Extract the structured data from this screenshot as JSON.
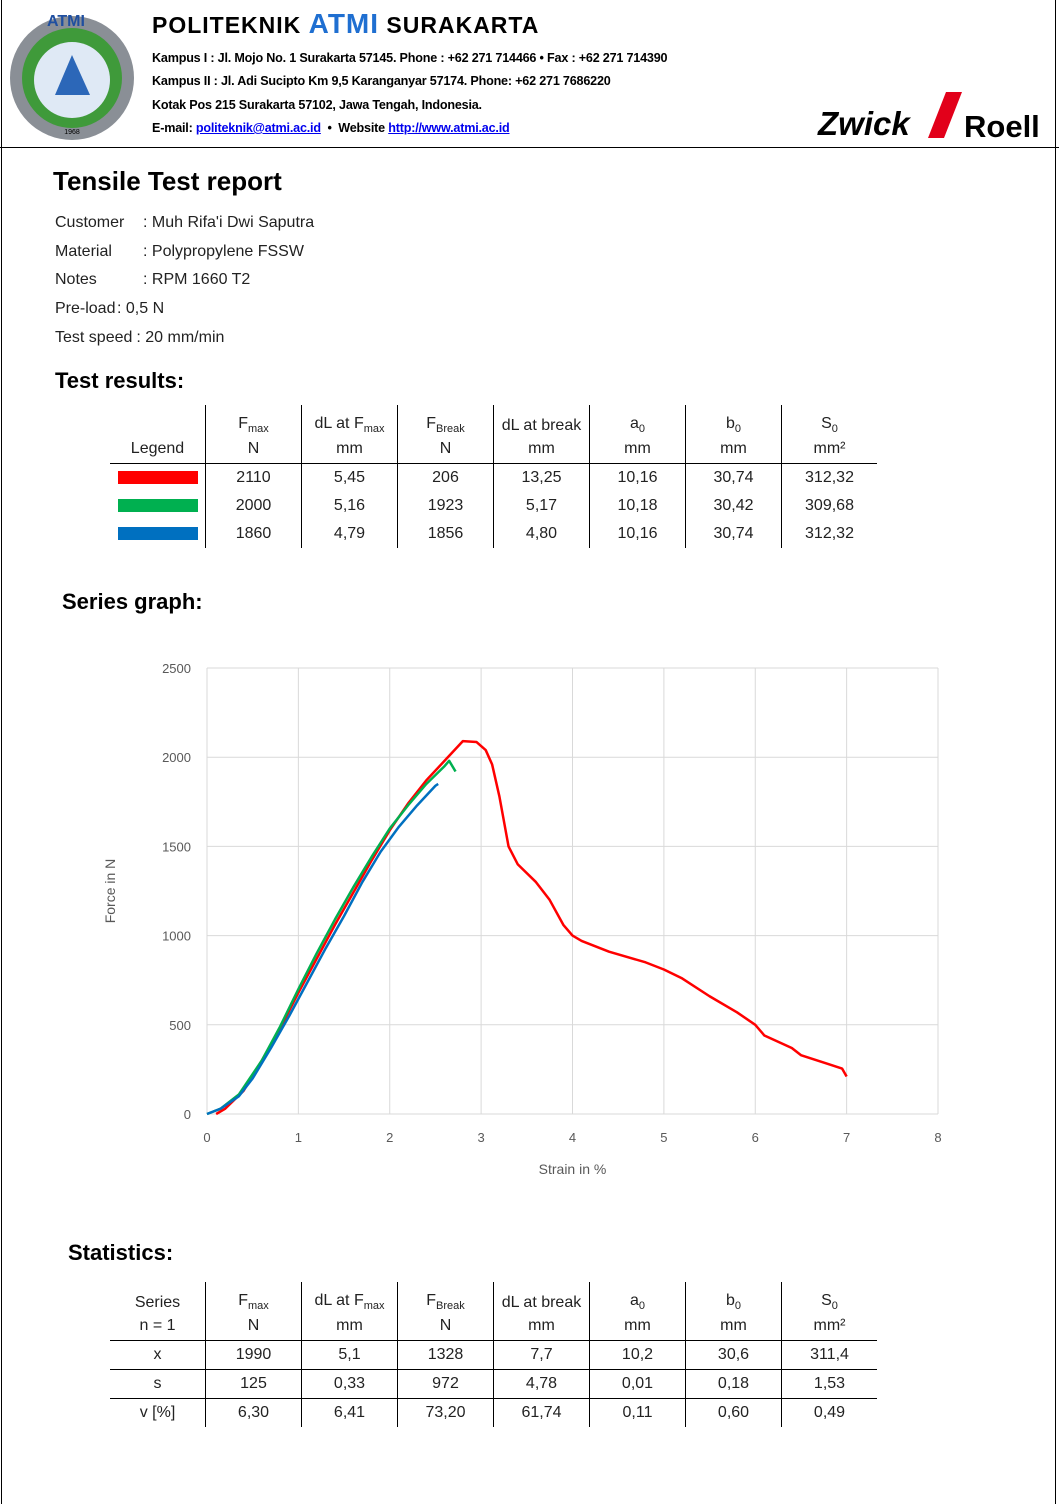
{
  "header": {
    "institute": [
      "POLITEKNIK ",
      "ATMI",
      " SURAKARTA"
    ],
    "address_lines": [
      "Kampus  I : Jl. Mojo No. 1 Surakarta 57145.  Phone : +62 271 714466  •  Fax : +62 271 714390",
      "Kampus II : Jl. Adi Sucipto Km 9,5 Karanganyar 57174.  Phone: +62 271 7686220",
      "Kotak Pos 215  Surakarta 57102, Jawa Tengah, Indonesia."
    ],
    "contact": [
      "E-mail: ",
      "politeknik@atmi.ac.id",
      "  •  Website ",
      "http://www.atmi.ac.id"
    ],
    "logo_text": "ATMI",
    "logo_year": "1968",
    "brand": [
      "Zwick",
      "Roell"
    ]
  },
  "title": "Tensile Test report",
  "info": [
    {
      "label": "Customer",
      "value": ": Muh Rifa'i Dwi Saputra"
    },
    {
      "label": "Material",
      "value": ": Polypropylene FSSW"
    },
    {
      "label": "Notes",
      "value": ": RPM 1660 T2"
    },
    {
      "label": "Pre-load",
      "value": ": 0,5 N"
    },
    {
      "label": "Test speed",
      "value": ": 20 mm/min"
    }
  ],
  "results": {
    "title": "Test results:",
    "legend_header": "Legend",
    "columns": [
      {
        "name": {
          "main": "F",
          "sub": "max"
        },
        "unit": "N"
      },
      {
        "name": {
          "main": "dL at F",
          "sub": "max"
        },
        "unit": "mm"
      },
      {
        "name": {
          "main": "F",
          "sub": "Break"
        },
        "unit": "N"
      },
      {
        "name": {
          "main": "dL at break"
        },
        "unit": "mm"
      },
      {
        "name": {
          "main": "a",
          "sub": "0"
        },
        "unit": "mm"
      },
      {
        "name": {
          "main": "b",
          "sub": "0"
        },
        "unit": "mm"
      },
      {
        "name": {
          "main": "S",
          "sub": "0"
        },
        "unit": "mm²"
      }
    ],
    "rows": [
      {
        "color": "#ff0000",
        "cells": [
          "2110",
          "5,45",
          "206",
          "13,25",
          "10,16",
          "30,74",
          "312,32"
        ]
      },
      {
        "color": "#00b050",
        "cells": [
          "2000",
          "5,16",
          "1923",
          "5,17",
          "10,18",
          "30,42",
          "309,68"
        ]
      },
      {
        "color": "#0070c0",
        "cells": [
          "1860",
          "4,79",
          "1856",
          "4,80",
          "10,16",
          "30,74",
          "312,32"
        ]
      }
    ]
  },
  "chart_data": {
    "type": "line",
    "title": "Series graph:",
    "xlabel": "Strain in %",
    "ylabel": "Force in N",
    "xlim": [
      0,
      8
    ],
    "ylim": [
      0,
      2500
    ],
    "xticks": [
      0,
      1,
      2,
      3,
      4,
      5,
      6,
      7,
      8
    ],
    "yticks": [
      0,
      500,
      1000,
      1500,
      2000,
      2500
    ],
    "grid": true,
    "series": [
      {
        "color": "#ff0000",
        "x": [
          0.1,
          0.2,
          0.4,
          0.6,
          0.8,
          1.0,
          1.2,
          1.4,
          1.6,
          1.8,
          2.0,
          2.2,
          2.4,
          2.6,
          2.8,
          2.95,
          3.05,
          3.12,
          3.2,
          3.3,
          3.4,
          3.6,
          3.75,
          3.9,
          4.0,
          4.1,
          4.4,
          4.8,
          5.0,
          5.2,
          5.5,
          5.8,
          6.0,
          6.1,
          6.4,
          6.5,
          6.8,
          6.95,
          7.0
        ],
        "values": [
          0,
          30,
          130,
          300,
          480,
          680,
          870,
          1060,
          1240,
          1420,
          1590,
          1740,
          1870,
          1980,
          2090,
          2085,
          2040,
          1960,
          1780,
          1500,
          1400,
          1300,
          1200,
          1060,
          1000,
          970,
          910,
          850,
          810,
          760,
          660,
          570,
          500,
          440,
          370,
          330,
          280,
          255,
          210
        ]
      },
      {
        "color": "#00b050",
        "x": [
          0,
          0.15,
          0.35,
          0.6,
          0.8,
          1.0,
          1.2,
          1.4,
          1.6,
          1.8,
          2.0,
          2.2,
          2.4,
          2.6,
          2.65,
          2.72
        ],
        "values": [
          0,
          30,
          110,
          300,
          490,
          700,
          900,
          1090,
          1270,
          1440,
          1600,
          1730,
          1850,
          1950,
          1980,
          1920
        ]
      },
      {
        "color": "#0070c0",
        "x": [
          0,
          0.15,
          0.35,
          0.5,
          0.7,
          0.9,
          1.1,
          1.3,
          1.5,
          1.7,
          1.9,
          2.1,
          2.3,
          2.5,
          2.53
        ],
        "values": [
          0,
          30,
          100,
          200,
          370,
          550,
          740,
          930,
          1110,
          1300,
          1470,
          1610,
          1730,
          1840,
          1850
        ]
      }
    ]
  },
  "statistics": {
    "title": "Statistics:",
    "series_header": "Series",
    "n_label": "n = 1",
    "columns": [
      {
        "name": {
          "main": "F",
          "sub": "max"
        },
        "unit": "N"
      },
      {
        "name": {
          "main": "dL at F",
          "sub": "max"
        },
        "unit": "mm"
      },
      {
        "name": {
          "main": "F",
          "sub": "Break"
        },
        "unit": "N"
      },
      {
        "name": {
          "main": "dL at break"
        },
        "unit": "mm"
      },
      {
        "name": {
          "main": "a",
          "sub": "0"
        },
        "unit": "mm"
      },
      {
        "name": {
          "main": "b",
          "sub": "0"
        },
        "unit": "mm"
      },
      {
        "name": {
          "main": "S",
          "sub": "0"
        },
        "unit": "mm²"
      }
    ],
    "rows": [
      {
        "label": "x",
        "cells": [
          "1990",
          "5,1",
          "1328",
          "7,7",
          "10,2",
          "30,6",
          "311,4"
        ]
      },
      {
        "label": "s",
        "cells": [
          "125",
          "0,33",
          "972",
          "4,78",
          "0,01",
          "0,18",
          "1,53"
        ]
      },
      {
        "label": "v [%]",
        "cells": [
          "6,30",
          "6,41",
          "73,20",
          "61,74",
          "0,11",
          "0,60",
          "0,49"
        ]
      }
    ]
  }
}
